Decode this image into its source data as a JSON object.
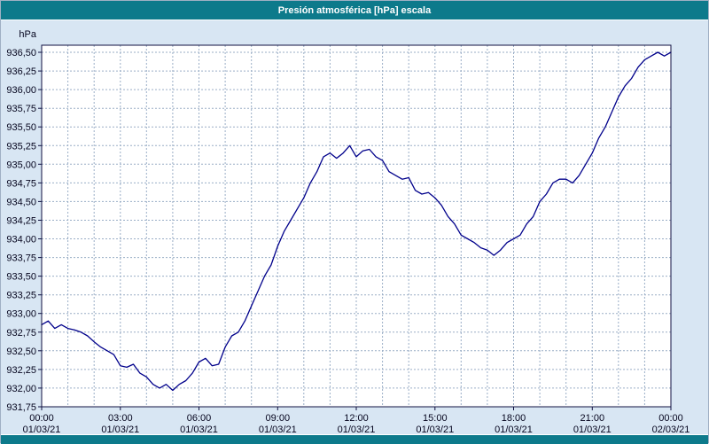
{
  "title_bar": {
    "title": "Presión atmosférica [hPa] escala"
  },
  "colors": {
    "accent": "#0d7a8b",
    "page_bg": "#d8e6f3",
    "plot_bg": "#ffffff",
    "grid": "#9aaec6",
    "axis": "#101040",
    "line": "#00008b",
    "text": "#05051e"
  },
  "chart_data": {
    "type": "line",
    "title": "Presión atmosférica [hPa] escala",
    "ylabel": "hPa",
    "xlabel": "",
    "grid": true,
    "legend": "none",
    "ylim": [
      931.75,
      936.5
    ],
    "ytick_step": 0.25,
    "xlim_hours": [
      0,
      24
    ],
    "minor_x_grid_hours": 1,
    "y_ticks": [
      {
        "value": 936.5,
        "label": "936,50"
      },
      {
        "value": 936.25,
        "label": "936,25"
      },
      {
        "value": 936.0,
        "label": "936,00"
      },
      {
        "value": 935.75,
        "label": "935,75"
      },
      {
        "value": 935.5,
        "label": "935,50"
      },
      {
        "value": 935.25,
        "label": "935,25"
      },
      {
        "value": 935.0,
        "label": "935,00"
      },
      {
        "value": 934.75,
        "label": "934,75"
      },
      {
        "value": 934.5,
        "label": "934,50"
      },
      {
        "value": 934.25,
        "label": "934,25"
      },
      {
        "value": 934.0,
        "label": "934,00"
      },
      {
        "value": 933.75,
        "label": "933,75"
      },
      {
        "value": 933.5,
        "label": "933,50"
      },
      {
        "value": 933.25,
        "label": "933,25"
      },
      {
        "value": 933.0,
        "label": "933,00"
      },
      {
        "value": 932.75,
        "label": "932,75"
      },
      {
        "value": 932.5,
        "label": "932,50"
      },
      {
        "value": 932.25,
        "label": "932,25"
      },
      {
        "value": 932.0,
        "label": "932,00"
      },
      {
        "value": 931.75,
        "label": "931,75"
      }
    ],
    "x_ticks": [
      {
        "hour": 0,
        "time": "00:00",
        "date": "01/03/21"
      },
      {
        "hour": 3,
        "time": "03:00",
        "date": "01/03/21"
      },
      {
        "hour": 6,
        "time": "06:00",
        "date": "01/03/21"
      },
      {
        "hour": 9,
        "time": "09:00",
        "date": "01/03/21"
      },
      {
        "hour": 12,
        "time": "12:00",
        "date": "01/03/21"
      },
      {
        "hour": 15,
        "time": "15:00",
        "date": "01/03/21"
      },
      {
        "hour": 18,
        "time": "18:00",
        "date": "01/03/21"
      },
      {
        "hour": 21,
        "time": "21:00",
        "date": "01/03/21"
      },
      {
        "hour": 24,
        "time": "00:00",
        "date": "02/03/21"
      }
    ],
    "series": [
      {
        "name": "Presión atmosférica [hPa]",
        "points": [
          [
            0.0,
            932.85
          ],
          [
            0.25,
            932.9
          ],
          [
            0.5,
            932.8
          ],
          [
            0.75,
            932.85
          ],
          [
            1.0,
            932.8
          ],
          [
            1.25,
            932.78
          ],
          [
            1.5,
            932.75
          ],
          [
            1.75,
            932.7
          ],
          [
            2.0,
            932.62
          ],
          [
            2.25,
            932.55
          ],
          [
            2.5,
            932.5
          ],
          [
            2.75,
            932.45
          ],
          [
            3.0,
            932.3
          ],
          [
            3.25,
            932.28
          ],
          [
            3.5,
            932.32
          ],
          [
            3.75,
            932.2
          ],
          [
            4.0,
            932.15
          ],
          [
            4.25,
            932.05
          ],
          [
            4.5,
            932.0
          ],
          [
            4.75,
            932.05
          ],
          [
            5.0,
            931.97
          ],
          [
            5.25,
            932.05
          ],
          [
            5.5,
            932.1
          ],
          [
            5.75,
            932.2
          ],
          [
            6.0,
            932.35
          ],
          [
            6.25,
            932.4
          ],
          [
            6.5,
            932.3
          ],
          [
            6.75,
            932.32
          ],
          [
            7.0,
            932.55
          ],
          [
            7.25,
            932.7
          ],
          [
            7.5,
            932.75
          ],
          [
            7.75,
            932.9
          ],
          [
            8.0,
            933.1
          ],
          [
            8.25,
            933.3
          ],
          [
            8.5,
            933.5
          ],
          [
            8.75,
            933.65
          ],
          [
            9.0,
            933.9
          ],
          [
            9.25,
            934.1
          ],
          [
            9.5,
            934.25
          ],
          [
            9.75,
            934.4
          ],
          [
            10.0,
            934.55
          ],
          [
            10.25,
            934.75
          ],
          [
            10.5,
            934.9
          ],
          [
            10.75,
            935.1
          ],
          [
            11.0,
            935.15
          ],
          [
            11.25,
            935.08
          ],
          [
            11.5,
            935.15
          ],
          [
            11.75,
            935.25
          ],
          [
            12.0,
            935.1
          ],
          [
            12.25,
            935.18
          ],
          [
            12.5,
            935.2
          ],
          [
            12.75,
            935.1
          ],
          [
            13.0,
            935.05
          ],
          [
            13.25,
            934.9
          ],
          [
            13.5,
            934.85
          ],
          [
            13.75,
            934.8
          ],
          [
            14.0,
            934.82
          ],
          [
            14.25,
            934.65
          ],
          [
            14.5,
            934.6
          ],
          [
            14.75,
            934.62
          ],
          [
            15.0,
            934.55
          ],
          [
            15.25,
            934.45
          ],
          [
            15.5,
            934.3
          ],
          [
            15.75,
            934.2
          ],
          [
            16.0,
            934.05
          ],
          [
            16.25,
            934.0
          ],
          [
            16.5,
            933.95
          ],
          [
            16.75,
            933.88
          ],
          [
            17.0,
            933.85
          ],
          [
            17.25,
            933.78
          ],
          [
            17.5,
            933.85
          ],
          [
            17.75,
            933.95
          ],
          [
            18.0,
            934.0
          ],
          [
            18.25,
            934.05
          ],
          [
            18.5,
            934.2
          ],
          [
            18.75,
            934.3
          ],
          [
            19.0,
            934.5
          ],
          [
            19.25,
            934.6
          ],
          [
            19.5,
            934.75
          ],
          [
            19.75,
            934.8
          ],
          [
            20.0,
            934.8
          ],
          [
            20.25,
            934.75
          ],
          [
            20.5,
            934.85
          ],
          [
            20.75,
            935.0
          ],
          [
            21.0,
            935.15
          ],
          [
            21.25,
            935.35
          ],
          [
            21.5,
            935.5
          ],
          [
            21.75,
            935.7
          ],
          [
            22.0,
            935.9
          ],
          [
            22.25,
            936.05
          ],
          [
            22.5,
            936.15
          ],
          [
            22.75,
            936.3
          ],
          [
            23.0,
            936.4
          ],
          [
            23.25,
            936.45
          ],
          [
            23.5,
            936.5
          ],
          [
            23.75,
            936.45
          ],
          [
            24.0,
            936.5
          ]
        ]
      }
    ]
  }
}
